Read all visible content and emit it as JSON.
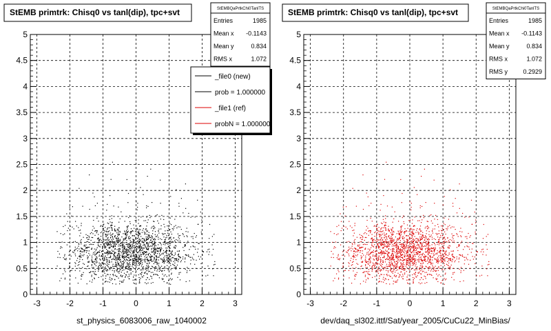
{
  "chart_data": [
    {
      "type": "scatter",
      "title": "StEMB primtrk: Chisq0 vs tanl(dip), tpc+svt",
      "xlabel": "st_physics_6083006_raw_1040002",
      "ylabel": "",
      "xlim": [
        -3.2,
        3.2
      ],
      "ylim": [
        0,
        5
      ],
      "xticks": [
        -3,
        -2,
        -1,
        0,
        1,
        2,
        3
      ],
      "yticks": [
        0,
        0.5,
        1,
        1.5,
        2,
        2.5,
        3,
        3.5,
        4,
        4.5,
        5
      ],
      "xtick_labels": [
        "-3",
        "-2",
        "-1",
        "0",
        "1",
        "2",
        "3"
      ],
      "ytick_labels": [
        "0",
        "0.5",
        "1",
        "1.5",
        "2",
        "2.5",
        "3",
        "3.5",
        "4",
        "4.5",
        "5"
      ],
      "grid": true,
      "marker_color": "#000000",
      "stats": {
        "header": "StEMBQaPrtkChi0TanlTS",
        "rows": [
          {
            "label": "Entries",
            "value": "1985"
          },
          {
            "label": "Mean x",
            "value": "-0.1143"
          },
          {
            "label": "Mean y",
            "value": "0.834"
          },
          {
            "label": "RMS x",
            "value": "1.072"
          }
        ]
      },
      "legend": {
        "placement": "top-right",
        "entries": [
          {
            "label": "_file0 (new)",
            "color": "#000000"
          },
          {
            "label": "prob = 1.000000",
            "color": "#000000"
          },
          {
            "label": "_file1 (ref)",
            "color": "#dd0000"
          },
          {
            "label": "probN = 1.000000",
            "color": "#dd0000"
          }
        ]
      }
    },
    {
      "type": "scatter",
      "title": "StEMB primtrk: Chisq0 vs tanl(dip), tpc+svt",
      "xlabel": "dev/daq_sl302.ittf/Sat/year_2005/CuCu22_MinBias/",
      "ylabel": "",
      "xlim": [
        -3.2,
        3.2
      ],
      "ylim": [
        0,
        5
      ],
      "xticks": [
        -3,
        -2,
        -1,
        0,
        1,
        2,
        3
      ],
      "yticks": [
        0,
        0.5,
        1,
        1.5,
        2,
        2.5,
        3,
        3.5,
        4,
        4.5,
        5
      ],
      "xtick_labels": [
        "-3",
        "-2",
        "-1",
        "0",
        "1",
        "2",
        "3"
      ],
      "ytick_labels": [
        "0",
        "0.5",
        "1",
        "1.5",
        "2",
        "2.5",
        "3",
        "3.5",
        "4",
        "4.5",
        "5"
      ],
      "grid": true,
      "marker_color": "#dd0000",
      "stats": {
        "header": "StEMBQaPrtkChi0TanlTS",
        "rows": [
          {
            "label": "Entries",
            "value": "1985"
          },
          {
            "label": "Mean x",
            "value": "-0.1143"
          },
          {
            "label": "Mean y",
            "value": "0.834"
          },
          {
            "label": "RMS x",
            "value": "1.072"
          },
          {
            "label": "RMS y",
            "value": "0.2929"
          }
        ]
      }
    }
  ]
}
